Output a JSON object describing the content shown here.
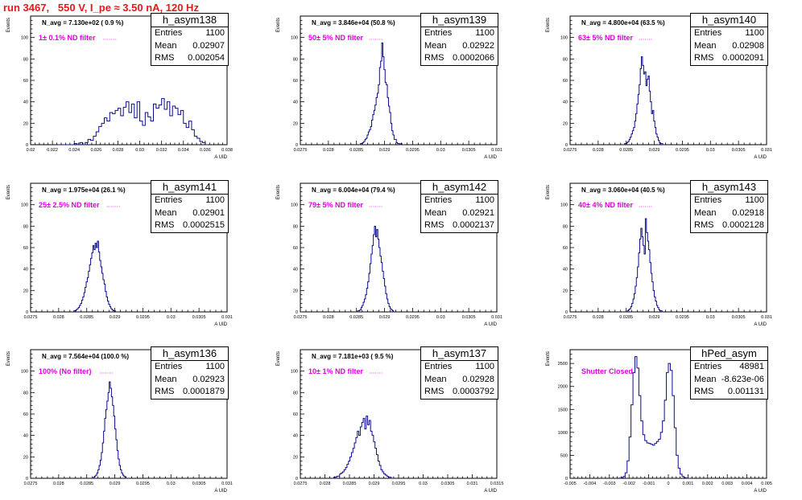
{
  "title": "run 3467,   550 V, I_pe ≈ 3.50 nA, 120 Hz",
  "colors": {
    "title": "#e8171b",
    "histogram": "#0b0b8f",
    "annotation": "#e000e0"
  },
  "chart_data": [
    {
      "type": "histogram",
      "name": "h_asym138",
      "stats": {
        "entries": "1100",
        "mean": "0.02907",
        "rms": "0.002054"
      },
      "navg": "N_avg = 7.130e+02 ( 0.9 %)",
      "note": "1± 0.1% ND filter",
      "ylabel": "Events",
      "xlabel": "A UID",
      "xlim": [
        0.02,
        0.038
      ],
      "ylim": [
        0,
        120
      ],
      "xticks": [
        "0.02",
        "0.022",
        "0.024",
        "0.026",
        "0.028",
        "0.03",
        "0.032",
        "0.034",
        "0.036",
        "0.038"
      ],
      "yticks": [
        "0",
        "20",
        "40",
        "60",
        "80",
        "100"
      ],
      "bins": {
        "start": 0.0225,
        "width": 0.00025,
        "counts": [
          0,
          0,
          0,
          0,
          0,
          0,
          1,
          0,
          2,
          0,
          2,
          5,
          4,
          8,
          12,
          17,
          20,
          25,
          22,
          30,
          29,
          32,
          34,
          27,
          35,
          40,
          30,
          38,
          25,
          40,
          22,
          18,
          30,
          26,
          22,
          38,
          34,
          37,
          43,
          33,
          40,
          27,
          36,
          34,
          28,
          32,
          20,
          16,
          22,
          14,
          8,
          6,
          3,
          2,
          0
        ]
      }
    },
    {
      "type": "histogram",
      "name": "h_asym139",
      "stats": {
        "entries": "1100",
        "mean": "0.02922",
        "rms": "0.0002066"
      },
      "navg": "N_avg = 3.846e+04 (50.8 %)",
      "note": "50± 5% ND filter",
      "ylabel": "Events",
      "xlabel": "A UID",
      "xlim": [
        0.0275,
        0.031
      ],
      "ylim": [
        0,
        120
      ],
      "xticks": [
        "0.0275",
        "0.028",
        "0.0285",
        "0.029",
        "0.0295",
        "0.03",
        "0.0305",
        "0.031"
      ],
      "yticks": [
        "0",
        "20",
        "40",
        "60",
        "80",
        "100"
      ],
      "bins": {
        "start": 0.02855,
        "width": 2e-05,
        "counts": [
          0,
          1,
          1,
          2,
          3,
          5,
          6,
          9,
          12,
          14,
          17,
          23,
          28,
          32,
          37,
          44,
          48,
          56,
          72,
          78,
          95,
          82,
          70,
          58,
          56,
          44,
          36,
          30,
          20,
          13,
          9,
          5,
          5,
          2,
          1,
          1,
          0,
          1,
          0,
          0
        ]
      }
    },
    {
      "type": "histogram",
      "name": "h_asym140",
      "stats": {
        "entries": "1100",
        "mean": "0.02908",
        "rms": "0.0002091"
      },
      "navg": "N_avg = 4.800e+04 (63.5 %)",
      "note": "63± 5% ND filter",
      "ylabel": "Events",
      "xlabel": "A UID",
      "xlim": [
        0.0275,
        0.031
      ],
      "ylim": [
        0,
        120
      ],
      "xticks": [
        "0.0275",
        "0.028",
        "0.0285",
        "0.029",
        "0.0295",
        "0.03",
        "0.0305",
        "0.031"
      ],
      "yticks": [
        "0",
        "20",
        "40",
        "60",
        "80",
        "100"
      ],
      "bins": {
        "start": 0.02845,
        "width": 2e-05,
        "counts": [
          0,
          1,
          1,
          2,
          3,
          5,
          7,
          10,
          13,
          16,
          22,
          29,
          38,
          47,
          56,
          71,
          82,
          74,
          66,
          68,
          55,
          61,
          64,
          50,
          40,
          29,
          32,
          22,
          16,
          10,
          7,
          4,
          2,
          1,
          1,
          0,
          0
        ]
      }
    },
    {
      "type": "histogram",
      "name": "h_asym141",
      "stats": {
        "entries": "1100",
        "mean": "0.02901",
        "rms": "0.0002515"
      },
      "navg": "N_avg = 1.975e+04 (26.1 %)",
      "note": "25± 2.5% ND filter",
      "ylabel": "Events",
      "xlabel": "A UID",
      "xlim": [
        0.0275,
        0.031
      ],
      "ylim": [
        0,
        120
      ],
      "xticks": [
        "0.0275",
        "0.028",
        "0.0285",
        "0.029",
        "0.0295",
        "0.03",
        "0.0305",
        "0.031"
      ],
      "yticks": [
        "0",
        "20",
        "40",
        "60",
        "80",
        "100"
      ],
      "bins": {
        "start": 0.02825,
        "width": 2e-05,
        "counts": [
          0,
          1,
          1,
          2,
          3,
          4,
          6,
          8,
          11,
          14,
          18,
          23,
          28,
          32,
          38,
          44,
          50,
          55,
          62,
          58,
          64,
          60,
          66,
          56,
          48,
          42,
          36,
          30,
          26,
          19,
          14,
          10,
          7,
          5,
          3,
          2,
          1,
          1,
          0
        ]
      }
    },
    {
      "type": "histogram",
      "name": "h_asym142",
      "stats": {
        "entries": "1100",
        "mean": "0.02921",
        "rms": "0.0002137"
      },
      "navg": "N_avg = 6.004e+04 (79.4 %)",
      "note": "79± 5% ND filter",
      "ylabel": "Events",
      "xlabel": "A UID",
      "xlim": [
        0.0275,
        0.031
      ],
      "ylim": [
        0,
        120
      ],
      "xticks": [
        "0.0275",
        "0.028",
        "0.0285",
        "0.029",
        "0.0295",
        "0.03",
        "0.0305",
        "0.031"
      ],
      "yticks": [
        "0",
        "20",
        "40",
        "60",
        "80",
        "100"
      ],
      "bins": {
        "start": 0.0285,
        "width": 2e-05,
        "counts": [
          0,
          1,
          1,
          2,
          4,
          6,
          9,
          12,
          16,
          22,
          28,
          36,
          45,
          54,
          62,
          72,
          80,
          70,
          77,
          68,
          60,
          52,
          46,
          38,
          31,
          24,
          17,
          12,
          8,
          5,
          3,
          2,
          1,
          0
        ]
      }
    },
    {
      "type": "histogram",
      "name": "h_asym143",
      "stats": {
        "entries": "1100",
        "mean": "0.02918",
        "rms": "0.0002128"
      },
      "navg": "N_avg = 3.060e+04 (40.5 %)",
      "note": "40± 4% ND filter",
      "ylabel": "Events",
      "xlabel": "A UID",
      "xlim": [
        0.0275,
        0.031
      ],
      "ylim": [
        0,
        120
      ],
      "xticks": [
        "0.0275",
        "0.028",
        "0.0285",
        "0.029",
        "0.0295",
        "0.03",
        "0.0305",
        "0.031"
      ],
      "yticks": [
        "0",
        "20",
        "40",
        "60",
        "80",
        "100"
      ],
      "bins": {
        "start": 0.0285,
        "width": 2e-05,
        "counts": [
          0,
          1,
          2,
          3,
          5,
          8,
          12,
          17,
          24,
          32,
          42,
          55,
          68,
          78,
          70,
          62,
          54,
          87,
          74,
          66,
          58,
          46,
          36,
          28,
          20,
          14,
          10,
          6,
          4,
          2,
          1,
          1,
          0
        ]
      }
    },
    {
      "type": "histogram",
      "name": "h_asym136",
      "stats": {
        "entries": "1100",
        "mean": "0.02923",
        "rms": "0.0001879"
      },
      "navg": "N_avg = 7.564e+04 (100.0 %)",
      "note": "100% (No filter)",
      "ylabel": "Events",
      "xlabel": "A UID",
      "xlim": [
        0.0275,
        0.031
      ],
      "ylim": [
        0,
        120
      ],
      "xticks": [
        "0.0275",
        "0.028",
        "0.0285",
        "0.029",
        "0.0295",
        "0.03",
        "0.0305",
        "0.031"
      ],
      "yticks": [
        "0",
        "20",
        "40",
        "60",
        "80",
        "100"
      ],
      "bins": {
        "start": 0.0286,
        "width": 2e-05,
        "counts": [
          0,
          1,
          2,
          3,
          5,
          8,
          12,
          17,
          24,
          33,
          44,
          56,
          64,
          72,
          80,
          90,
          84,
          76,
          68,
          58,
          46,
          36,
          26,
          18,
          12,
          8,
          5,
          3,
          2,
          1,
          0
        ]
      }
    },
    {
      "type": "histogram",
      "name": "h_asym137",
      "stats": {
        "entries": "1100",
        "mean": "0.02928",
        "rms": "0.0003792"
      },
      "navg": "N_avg = 7.181e+03 ( 9.5 %)",
      "note": "10± 1% ND filter",
      "ylabel": "Events",
      "xlabel": "A UID",
      "xlim": [
        0.0275,
        0.0315
      ],
      "ylim": [
        0,
        120
      ],
      "xticks": [
        "0.0275",
        "0.028",
        "0.0285",
        "0.029",
        "0.0295",
        "0.03",
        "0.0305",
        "0.031",
        "0.0315"
      ],
      "yticks": [
        "0",
        "20",
        "40",
        "60",
        "80",
        "100"
      ],
      "bins": {
        "start": 0.02815,
        "width": 3e-05,
        "counts": [
          0,
          1,
          1,
          2,
          2,
          4,
          5,
          6,
          8,
          10,
          13,
          16,
          20,
          24,
          28,
          33,
          38,
          44,
          40,
          48,
          52,
          56,
          46,
          58,
          50,
          54,
          44,
          40,
          34,
          28,
          22,
          16,
          12,
          8,
          6,
          4,
          3,
          2,
          1,
          1,
          0
        ]
      }
    },
    {
      "type": "histogram",
      "name": "hPed_asym",
      "stats": {
        "entries": "48981",
        "mean": "-8.623e-06",
        "rms": "0.001131"
      },
      "navg": "",
      "note": "Shutter Closed",
      "ylabel": "Events",
      "xlabel": "A UID",
      "xlim": [
        -0.005,
        0.005
      ],
      "ylim": [
        0,
        2800
      ],
      "xticks": [
        "-0.005",
        "-0.004",
        "-0.003",
        "-0.002",
        "-0.001",
        "0",
        "0.001",
        "0.002",
        "0.003",
        "0.004",
        "0.005"
      ],
      "yticks": [
        "0",
        "500",
        "1000",
        "1500",
        "2000",
        "2500"
      ],
      "bins": {
        "start": -0.0025,
        "width": 0.0001,
        "counts": [
          5,
          15,
          40,
          120,
          380,
          900,
          1600,
          2300,
          2650,
          2400,
          1800,
          1250,
          950,
          820,
          770,
          760,
          740,
          720,
          760,
          800,
          850,
          1000,
          1250,
          1700,
          2300,
          2500,
          2350,
          1800,
          1100,
          500,
          220,
          90,
          40,
          15,
          5,
          0
        ]
      }
    }
  ]
}
